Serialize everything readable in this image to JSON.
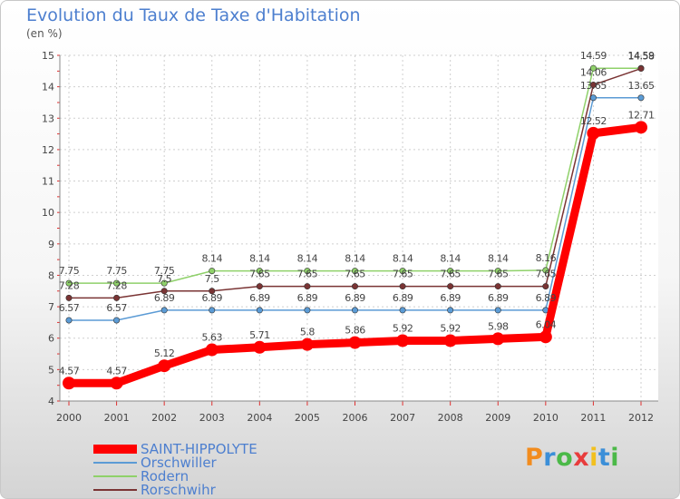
{
  "chart_data": {
    "type": "line",
    "title": "Evolution du Taux de Taxe d'Habitation",
    "subtitle": "(en %)",
    "xlabel": "",
    "ylabel": "",
    "categories": [
      "2000",
      "2001",
      "2002",
      "2003",
      "2004",
      "2005",
      "2006",
      "2007",
      "2008",
      "2009",
      "2010",
      "2011",
      "2012"
    ],
    "ylim": [
      4,
      15
    ],
    "yticks": [
      4,
      5,
      6,
      7,
      8,
      9,
      10,
      11,
      12,
      13,
      14,
      15
    ],
    "legend_position": "bottom-left",
    "series": [
      {
        "name": "SAINT-HIPPOLYTE",
        "color": "#ff0000",
        "values": [
          4.57,
          4.57,
          5.12,
          5.63,
          5.71,
          5.8,
          5.86,
          5.92,
          5.92,
          5.98,
          6.04,
          12.52,
          12.71
        ],
        "labels": [
          "4.57",
          "4.57",
          "5.12",
          "5.63",
          "5.71",
          "5.8",
          "5.86",
          "5.92",
          "5.92",
          "5.98",
          "6.04",
          "12.52",
          "12.71"
        ]
      },
      {
        "name": "Orschwiller",
        "color": "#5b9bd5",
        "values": [
          6.57,
          6.57,
          6.89,
          6.89,
          6.89,
          6.89,
          6.89,
          6.89,
          6.89,
          6.89,
          6.89,
          13.65,
          13.65
        ],
        "labels": [
          "6.57",
          "6.57",
          "6.89",
          "6.89",
          "6.89",
          "6.89",
          "6.89",
          "6.89",
          "6.89",
          "6.89",
          "6.89",
          "13.65",
          "13.65"
        ]
      },
      {
        "name": "Rodern",
        "color": "#8fd16a",
        "values": [
          7.75,
          7.75,
          7.75,
          8.14,
          8.14,
          8.14,
          8.14,
          8.14,
          8.14,
          8.14,
          8.16,
          14.59,
          14.59
        ],
        "labels": [
          "7.75",
          "7.75",
          "7.75",
          "8.14",
          "8.14",
          "8.14",
          "8.14",
          "8.14",
          "8.14",
          "8.14",
          "8.16",
          "14.59",
          "14.59"
        ]
      },
      {
        "name": "Rorschwihr",
        "color": "#7a3434",
        "values": [
          7.28,
          7.28,
          7.5,
          7.5,
          7.65,
          7.65,
          7.65,
          7.65,
          7.65,
          7.65,
          7.65,
          14.06,
          14.58
        ],
        "labels": [
          "7.28",
          "7.28",
          "7.5",
          "7.5",
          "7.65",
          "7.65",
          "7.65",
          "7.65",
          "7.65",
          "7.65",
          "7.65",
          "14.06",
          "14.58"
        ]
      }
    ]
  },
  "logo": {
    "letters": [
      "P",
      "r",
      "o",
      "x",
      "i",
      "t",
      "i"
    ],
    "colors": [
      "#f28c1e",
      "#3c8fd8",
      "#4bb948",
      "#e83c3c",
      "#f2c01e",
      "#3c8fd8",
      "#4bb948"
    ],
    "alt": "Proxiti"
  }
}
